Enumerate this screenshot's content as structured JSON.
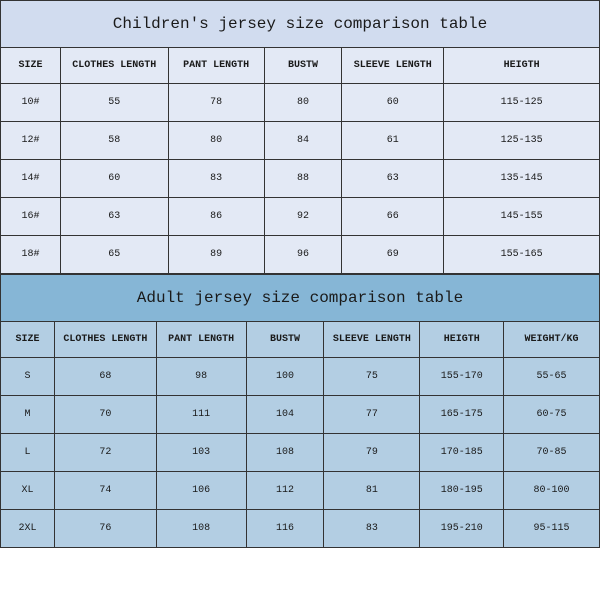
{
  "children": {
    "title": "Children's jersey size comparison table",
    "title_bg": "#d1dcef",
    "header_bg": "#e3e9f5",
    "row_bg": "#e3e9f5",
    "border_color": "#333333",
    "text_color": "#1a1a1a",
    "title_fontsize": 16,
    "header_fontsize": 10,
    "cell_fontsize": 10,
    "headers": [
      "SIZE",
      "CLOTHES LENGTH",
      "PANT LENGTH",
      "BUSTW",
      "SLEEVE LENGTH",
      "HEIGTH"
    ],
    "rows": [
      {
        "size": "10#",
        "clothes": "55",
        "pant": "78",
        "bust": "80",
        "sleeve": "60",
        "heigth": "115-125"
      },
      {
        "size": "12#",
        "clothes": "58",
        "pant": "80",
        "bust": "84",
        "sleeve": "61",
        "heigth": "125-135"
      },
      {
        "size": "14#",
        "clothes": "60",
        "pant": "83",
        "bust": "88",
        "sleeve": "63",
        "heigth": "135-145"
      },
      {
        "size": "16#",
        "clothes": "63",
        "pant": "86",
        "bust": "92",
        "sleeve": "66",
        "heigth": "145-155"
      },
      {
        "size": "18#",
        "clothes": "65",
        "pant": "89",
        "bust": "96",
        "sleeve": "69",
        "heigth": "155-165"
      }
    ]
  },
  "adult": {
    "title": "Adult jersey size comparison table",
    "title_bg": "#86b6d6",
    "header_bg": "#b3cee3",
    "row_bg": "#b3cee3",
    "border_color": "#333333",
    "text_color": "#1a1a1a",
    "title_fontsize": 16,
    "header_fontsize": 10,
    "cell_fontsize": 10,
    "headers": [
      "SIZE",
      "CLOTHES LENGTH",
      "PANT LENGTH",
      "BUSTW",
      "SLEEVE LENGTH",
      "HEIGTH",
      "WEIGHT/KG"
    ],
    "rows": [
      {
        "size": "S",
        "clothes": "68",
        "pant": "98",
        "bust": "100",
        "sleeve": "75",
        "heigth": "155-170",
        "weight": "55-65"
      },
      {
        "size": "M",
        "clothes": "70",
        "pant": "111",
        "bust": "104",
        "sleeve": "77",
        "heigth": "165-175",
        "weight": "60-75"
      },
      {
        "size": "L",
        "clothes": "72",
        "pant": "103",
        "bust": "108",
        "sleeve": "79",
        "heigth": "170-185",
        "weight": "70-85"
      },
      {
        "size": "XL",
        "clothes": "74",
        "pant": "106",
        "bust": "112",
        "sleeve": "81",
        "heigth": "180-195",
        "weight": "80-100"
      },
      {
        "size": "2XL",
        "clothes": "76",
        "pant": "108",
        "bust": "116",
        "sleeve": "83",
        "heigth": "195-210",
        "weight": "95-115"
      }
    ]
  }
}
